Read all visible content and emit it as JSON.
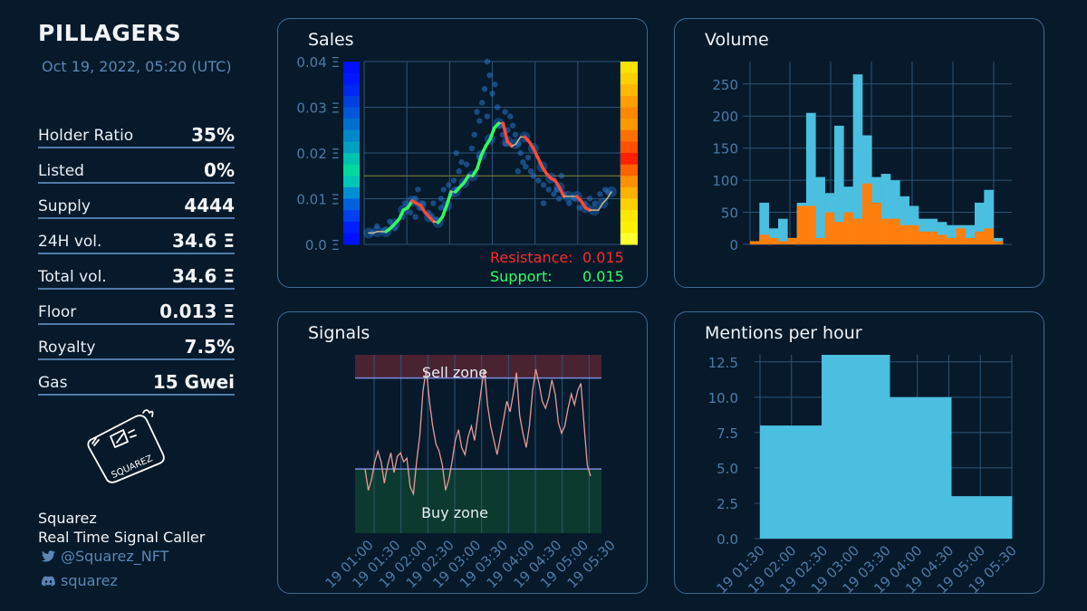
{
  "header": {
    "title": "PILLAGERS",
    "date": "Oct 19, 2022, 05:20 (UTC)"
  },
  "stats": [
    {
      "label": "Holder Ratio",
      "value": "35%"
    },
    {
      "label": "Listed",
      "value": "0%"
    },
    {
      "label": "Supply",
      "value": "4444"
    },
    {
      "label": "24H vol.",
      "value": "34.6 Ξ"
    },
    {
      "label": "Total vol.",
      "value": "34.6 Ξ"
    },
    {
      "label": "Floor",
      "value": "0.013 Ξ"
    },
    {
      "label": "Royalty",
      "value": "7.5%"
    },
    {
      "label": "Gas",
      "value": "15 Gwei"
    }
  ],
  "logo_text": "SQUAREZ",
  "author": {
    "name": "Squarez",
    "tagline": "Real Time Signal Caller",
    "twitter": "@Squarez_NFT",
    "discord": "squarez"
  },
  "colors": {
    "background": "#061a2b",
    "panel_border": "#3d6a96",
    "volume_total": "#4bbfdf",
    "volume_part": "#ff7f0e",
    "mentions": "#4bbfdf",
    "signal_line": "#e89a9a",
    "resistance": "#ff2020",
    "support": "#30ff60"
  },
  "chart_data": [
    {
      "panel": "Sales",
      "type": "scatter",
      "title": "Sales",
      "yticks": [
        "0.0 Ξ",
        "0.01 Ξ",
        "0.02 Ξ",
        "0.03 Ξ",
        "0.04 Ξ"
      ],
      "ylim": [
        0,
        0.04
      ],
      "resistance_label": "Resistance:",
      "resistance_value": "0.015",
      "support_label": "Support:",
      "support_value": "0.015",
      "trend": [
        0.0025,
        0.0025,
        0.0028,
        0.0028,
        0.0028,
        0.0035,
        0.0045,
        0.0055,
        0.0075,
        0.008,
        0.0095,
        0.009,
        0.0085,
        0.007,
        0.006,
        0.005,
        0.0048,
        0.006,
        0.0085,
        0.0115,
        0.0115,
        0.0125,
        0.0135,
        0.015,
        0.015,
        0.0165,
        0.0195,
        0.0215,
        0.023,
        0.0255,
        0.0265,
        0.0265,
        0.0225,
        0.0215,
        0.022,
        0.0235,
        0.0235,
        0.0225,
        0.021,
        0.019,
        0.017,
        0.0155,
        0.0145,
        0.014,
        0.0125,
        0.0105,
        0.0105,
        0.0105,
        0.0105,
        0.0095,
        0.008,
        0.0075,
        0.0075,
        0.0075,
        0.009,
        0.01,
        0.0115
      ],
      "points": [
        [
          0.03,
          0.0025
        ],
        [
          0.05,
          0.004
        ],
        [
          0.08,
          0.003
        ],
        [
          0.1,
          0.005
        ],
        [
          0.12,
          0.0035
        ],
        [
          0.15,
          0.006
        ],
        [
          0.16,
          0.009
        ],
        [
          0.18,
          0.007
        ],
        [
          0.2,
          0.01
        ],
        [
          0.21,
          0.012
        ],
        [
          0.22,
          0.008
        ],
        [
          0.23,
          0.009
        ],
        [
          0.25,
          0.007
        ],
        [
          0.26,
          0.006
        ],
        [
          0.28,
          0.0055
        ],
        [
          0.3,
          0.008
        ],
        [
          0.31,
          0.012
        ],
        [
          0.33,
          0.013
        ],
        [
          0.34,
          0.011
        ],
        [
          0.35,
          0.014
        ],
        [
          0.36,
          0.012
        ],
        [
          0.37,
          0.016
        ],
        [
          0.38,
          0.018
        ],
        [
          0.4,
          0.0175
        ],
        [
          0.41,
          0.015
        ],
        [
          0.42,
          0.021
        ],
        [
          0.43,
          0.024
        ],
        [
          0.44,
          0.029
        ],
        [
          0.45,
          0.027
        ],
        [
          0.46,
          0.031
        ],
        [
          0.47,
          0.034
        ],
        [
          0.48,
          0.04
        ],
        [
          0.49,
          0.037
        ],
        [
          0.5,
          0.033
        ],
        [
          0.51,
          0.035
        ],
        [
          0.52,
          0.03
        ],
        [
          0.53,
          0.026
        ],
        [
          0.54,
          0.024
        ],
        [
          0.55,
          0.022
        ],
        [
          0.56,
          0.025
        ],
        [
          0.57,
          0.028
        ],
        [
          0.58,
          0.026
        ],
        [
          0.59,
          0.024
        ],
        [
          0.6,
          0.022
        ],
        [
          0.61,
          0.02
        ],
        [
          0.62,
          0.018
        ],
        [
          0.63,
          0.017
        ],
        [
          0.64,
          0.019
        ],
        [
          0.65,
          0.016
        ],
        [
          0.66,
          0.015
        ],
        [
          0.68,
          0.014
        ],
        [
          0.7,
          0.013
        ],
        [
          0.72,
          0.012
        ],
        [
          0.74,
          0.011
        ],
        [
          0.75,
          0.012
        ],
        [
          0.76,
          0.01
        ],
        [
          0.78,
          0.011
        ],
        [
          0.8,
          0.009
        ],
        [
          0.82,
          0.01
        ],
        [
          0.84,
          0.008
        ],
        [
          0.86,
          0.009
        ],
        [
          0.88,
          0.01
        ],
        [
          0.9,
          0.009
        ],
        [
          0.92,
          0.011
        ],
        [
          0.94,
          0.012
        ],
        [
          0.95,
          0.0115
        ],
        [
          0.2,
          0.006
        ],
        [
          0.3,
          0.01
        ],
        [
          0.45,
          0.019
        ],
        [
          0.36,
          0.02
        ],
        [
          0.27,
          0.009
        ],
        [
          0.6,
          0.016
        ],
        [
          0.7,
          0.009
        ],
        [
          0.77,
          0.015
        ],
        [
          0.55,
          0.029
        ],
        [
          0.48,
          0.028
        ]
      ]
    },
    {
      "panel": "Volume",
      "type": "bar",
      "title": "Volume",
      "yticks": [
        "0",
        "50",
        "100",
        "150",
        "200",
        "250"
      ],
      "ylim": [
        0,
        285
      ],
      "series": [
        {
          "values": [
            5,
            65,
            25,
            40,
            10,
            65,
            205,
            105,
            80,
            185,
            90,
            265,
            170,
            105,
            110,
            100,
            75,
            60,
            40,
            40,
            35,
            30,
            30,
            30,
            65,
            85,
            10
          ]
        },
        {
          "values": [
            5,
            15,
            10,
            5,
            10,
            60,
            60,
            10,
            50,
            35,
            50,
            40,
            95,
            65,
            40,
            40,
            30,
            30,
            20,
            20,
            15,
            10,
            25,
            10,
            20,
            25,
            5
          ]
        }
      ]
    },
    {
      "panel": "Signals",
      "type": "line",
      "title": "Signals",
      "sell_zone_label": "Sell zone",
      "buy_zone_label": "Buy zone",
      "ylim": [
        0,
        100
      ],
      "zones": {
        "sell": [
          87,
          100
        ],
        "buy": [
          0,
          36
        ]
      },
      "xticks": [
        "19 01:00",
        "19 01:30",
        "19 02:00",
        "19 02:30",
        "19 03:00",
        "19 03:30",
        "19 04:00",
        "19 04:30",
        "19 05:00",
        "19 05:30"
      ],
      "values": [
        36,
        24,
        30,
        40,
        46,
        40,
        28,
        38,
        45,
        34,
        43,
        45,
        40,
        42,
        26,
        22,
        40,
        55,
        80,
        92,
        74,
        60,
        50,
        46,
        38,
        24,
        30,
        40,
        52,
        58,
        48,
        44,
        54,
        60,
        52,
        66,
        80,
        92,
        72,
        60,
        52,
        44,
        54,
        64,
        74,
        68,
        78,
        90,
        66,
        56,
        48,
        60,
        80,
        92,
        84,
        74,
        70,
        76,
        86,
        78,
        62,
        56,
        60,
        70,
        78,
        72,
        80,
        84,
        60,
        38,
        32
      ]
    },
    {
      "panel": "Mentions per hour",
      "type": "area",
      "title": "Mentions per hour",
      "yticks": [
        "0.0",
        "2.5",
        "5.0",
        "7.5",
        "10.0",
        "12.5"
      ],
      "ylim": [
        0,
        13
      ],
      "xticks": [
        "19 01:30",
        "19 02:00",
        "19 02:30",
        "19 03:00",
        "19 03:30",
        "19 04:00",
        "19 04:30",
        "19 05:00",
        "19 05:30"
      ],
      "steps": [
        8,
        13,
        10,
        3
      ]
    }
  ]
}
